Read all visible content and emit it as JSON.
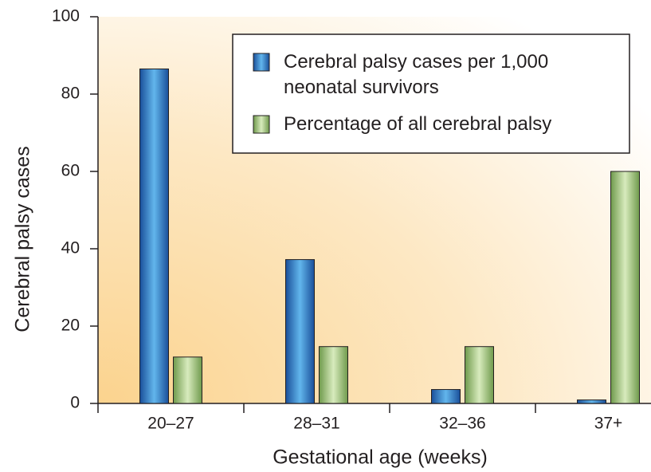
{
  "chart_data": {
    "type": "bar",
    "x_label": "Gestational age (weeks)",
    "y_label": "Cerebral palsy cases",
    "categories": [
      "20–27",
      "28–31",
      "32–36",
      "37+"
    ],
    "series": [
      {
        "name": "Cerebral palsy cases per 1,000 neonatal survivors",
        "color": "#1f78c8",
        "values": [
          86.5,
          37.2,
          3.6,
          0.9
        ]
      },
      {
        "name": "Percentage of all cerebral palsy",
        "color": "#9cc07a",
        "values": [
          12,
          14.7,
          14.7,
          60
        ]
      }
    ],
    "ylim": [
      0,
      100
    ],
    "yticks": [
      0,
      20,
      40,
      60,
      80,
      100
    ],
    "grid": false,
    "legend": "upper right"
  }
}
